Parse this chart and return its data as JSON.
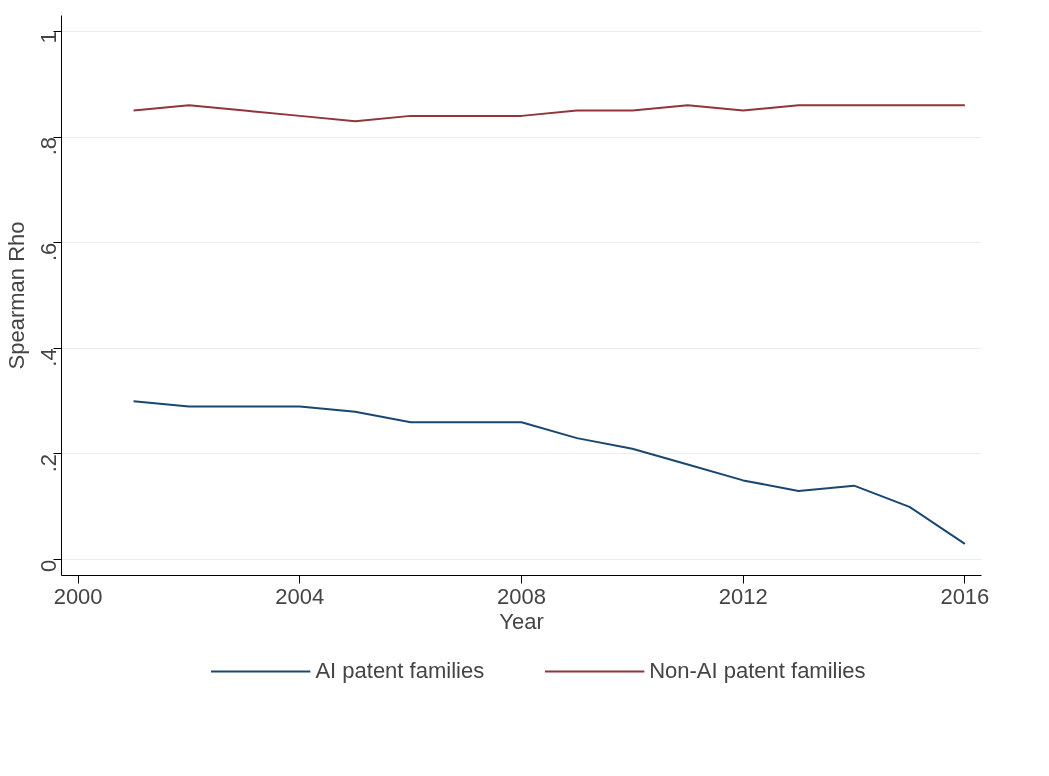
{
  "chart_data": {
    "type": "line",
    "xlabel": "Year",
    "ylabel": "Spearman Rho",
    "x": [
      2001,
      2002,
      2003,
      2004,
      2005,
      2006,
      2007,
      2008,
      2009,
      2010,
      2011,
      2012,
      2013,
      2014,
      2015,
      2016
    ],
    "series": [
      {
        "name": "AI patent families",
        "color": "#1a476f",
        "values": [
          0.3,
          0.29,
          0.29,
          0.29,
          0.28,
          0.26,
          0.26,
          0.26,
          0.23,
          0.21,
          0.18,
          0.15,
          0.13,
          0.14,
          0.1,
          0.03
        ]
      },
      {
        "name": "Non-AI patent families",
        "color": "#90353b",
        "values": [
          0.85,
          0.86,
          0.85,
          0.84,
          0.83,
          0.84,
          0.84,
          0.84,
          0.85,
          0.85,
          0.86,
          0.85,
          0.86,
          0.86,
          0.86,
          0.86
        ]
      }
    ],
    "xlim": [
      1999.7,
      2016.3
    ],
    "ylim": [
      -0.03,
      1.03
    ],
    "xticks": [
      2000,
      2004,
      2008,
      2012,
      2016
    ],
    "yticks": [
      {
        "value": 0,
        "label": "0"
      },
      {
        "value": 0.2,
        "label": ".2"
      },
      {
        "value": 0.4,
        "label": ".4"
      },
      {
        "value": 0.6,
        "label": ".6"
      },
      {
        "value": 0.8,
        "label": ".8"
      },
      {
        "value": 1,
        "label": "1"
      }
    ],
    "grid": "y",
    "legend": "bottom",
    "marker": "none",
    "line_style": "solid"
  }
}
